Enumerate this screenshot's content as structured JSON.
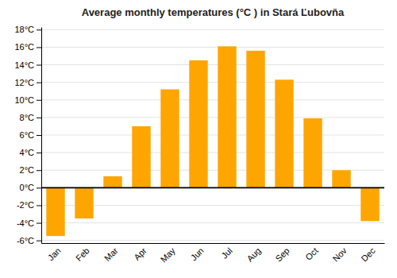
{
  "chart_data": {
    "type": "bar",
    "title": "Average monthly temperatures (°C ) in Stará Ľubovňa",
    "categories": [
      "Jan",
      "Feb",
      "Mar",
      "Apr",
      "May",
      "Jun",
      "Jul",
      "Aug",
      "Sep",
      "Oct",
      "Nov",
      "Dec"
    ],
    "values": [
      -5.5,
      -3.5,
      1.3,
      7.0,
      11.2,
      14.5,
      16.1,
      15.6,
      12.3,
      7.9,
      2.0,
      -3.8
    ],
    "color": "#FFA500",
    "ylim": [
      -6.3,
      18.3
    ],
    "yticks": [
      {
        "value": -6,
        "label": "-6°C"
      },
      {
        "value": -4,
        "label": "-4°C"
      },
      {
        "value": -2,
        "label": "-2°C"
      },
      {
        "value": 0,
        "label": "0°C"
      },
      {
        "value": 2,
        "label": "2°C"
      },
      {
        "value": 4,
        "label": "4°C"
      },
      {
        "value": 6,
        "label": "6°C"
      },
      {
        "value": 8,
        "label": "8°C"
      },
      {
        "value": 10,
        "label": "10°C"
      },
      {
        "value": 12,
        "label": "12°C"
      },
      {
        "value": 14,
        "label": "14°C"
      },
      {
        "value": 16,
        "label": "16°C"
      },
      {
        "value": 18,
        "label": "18°C"
      }
    ],
    "grid": true
  }
}
